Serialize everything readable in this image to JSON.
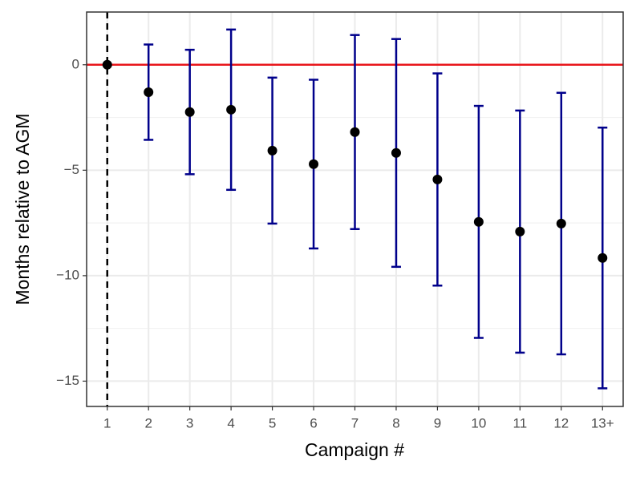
{
  "chart_data": {
    "type": "errorbar",
    "x_label": "Campaign #",
    "y_label": "Months relative to AGM",
    "categories": [
      "1",
      "2",
      "3",
      "4",
      "5",
      "6",
      "7",
      "8",
      "9",
      "10",
      "11",
      "12",
      "13+"
    ],
    "values": [
      0,
      -1.3,
      -2.24,
      -2.13,
      -4.07,
      -4.71,
      -3.19,
      -4.18,
      -5.44,
      -7.45,
      -7.91,
      -7.53,
      -9.16
    ],
    "errors": [
      0,
      2.26,
      2.95,
      3.8,
      3.46,
      4.0,
      4.6,
      5.4,
      5.03,
      5.5,
      5.74,
      6.2,
      6.18
    ],
    "point_color": "#000000",
    "error_color": "#00008b",
    "ylim": [
      -16.2,
      2.5
    ],
    "yticks": [
      {
        "value": -15,
        "label": "−15"
      },
      {
        "value": -10,
        "label": "−10"
      },
      {
        "value": -5,
        "label": "−5"
      },
      0
    ],
    "minor_yticks": [
      -12.5,
      -7.5,
      -2.5
    ],
    "grid": true,
    "hline": {
      "value": 0,
      "color": "#e8161b"
    },
    "vline_category": "1"
  }
}
